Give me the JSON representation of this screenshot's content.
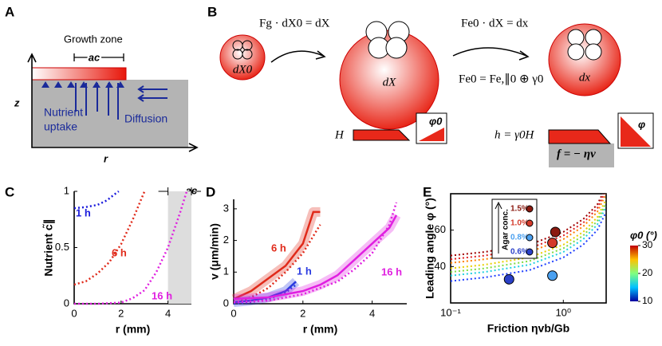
{
  "panel_labels": [
    "A",
    "B",
    "C",
    "D",
    "E"
  ],
  "diagram_a": {
    "growth_zone": "Growth zone",
    "ac": "ac",
    "z": "z",
    "r": "r",
    "uptake": [
      "Nutrient",
      "uptake"
    ],
    "diffusion": "Diffusion"
  },
  "diagram_b": {
    "eq1": "Fg · dX0 = dX",
    "eq2": "Fe0 · dX = dx",
    "eq3": "Fe0 = Fe,∥0 ⊕ γ0",
    "small": "dX0",
    "mid": "dX",
    "big": "dx",
    "H": "H",
    "phi0": "φ0",
    "h": "h = γ0H",
    "phi": "φ",
    "f": "f = − ηv"
  },
  "chart_data": [
    {
      "type": "line",
      "xlabel": "r (mm)",
      "ylabel": "Nutrient c̃∥",
      "xlim": [
        0,
        5
      ],
      "xticks": [
        0,
        2,
        4
      ],
      "ylim": [
        0,
        1
      ],
      "yticks": [
        0,
        0.5,
        1
      ],
      "band": [
        4,
        5
      ],
      "band_label": "ac",
      "series": [
        {
          "name": "1 h",
          "color": "#1a1adc",
          "x": [
            0,
            0.5,
            1,
            1.4,
            1.7,
            1.9
          ],
          "values": [
            0.85,
            0.86,
            0.88,
            0.92,
            0.97,
            1.0
          ]
        },
        {
          "name": "6 h",
          "color": "#e02a1a",
          "x": [
            0,
            0.5,
            1,
            1.5,
            2,
            2.5,
            3
          ],
          "values": [
            0.17,
            0.2,
            0.27,
            0.37,
            0.53,
            0.75,
            1.0
          ]
        },
        {
          "name": "16 h",
          "color": "#e020e0",
          "x": [
            0,
            1,
            2,
            2.5,
            3,
            3.5,
            4,
            4.5,
            4.8
          ],
          "values": [
            0,
            0,
            0.01,
            0.05,
            0.12,
            0.28,
            0.5,
            0.8,
            1.0
          ]
        }
      ]
    },
    {
      "type": "line",
      "xlabel": "r (mm)",
      "ylabel": "v (μm/min)",
      "xlim": [
        0,
        5
      ],
      "xticks": [
        0,
        2,
        4
      ],
      "ylim": [
        0,
        3.3
      ],
      "yticks": [
        0,
        1,
        2,
        3
      ],
      "series": [
        {
          "name": "6 h",
          "color": "#e02a1a",
          "x": [
            0,
            0.5,
            1,
            1.5,
            2,
            2.3,
            2.5
          ],
          "values": [
            0.15,
            0.4,
            0.8,
            1.2,
            1.9,
            2.9,
            2.9
          ],
          "model_x": [
            0,
            0.5,
            1,
            1.5,
            2,
            2.5
          ],
          "model_values": [
            0,
            0.2,
            0.5,
            1.0,
            1.6,
            2.5
          ]
        },
        {
          "name": "1 h",
          "color": "#2a3ae0",
          "x": [
            0,
            0.5,
            1,
            1.5,
            1.8
          ],
          "values": [
            0.05,
            0.1,
            0.2,
            0.4,
            0.7
          ],
          "model_x": [
            0,
            0.5,
            1,
            1.5,
            1.8
          ],
          "model_values": [
            0,
            0.05,
            0.15,
            0.35,
            0.6
          ]
        },
        {
          "name": "16 h",
          "color": "#e020e0",
          "x": [
            0,
            1,
            2,
            2.5,
            3,
            3.5,
            4,
            4.5,
            4.7
          ],
          "values": [
            0.15,
            0.2,
            0.4,
            0.6,
            0.9,
            1.4,
            1.9,
            2.4,
            2.8
          ],
          "model_x": [
            0,
            1,
            2,
            3,
            3.5,
            4,
            4.5,
            4.7
          ],
          "model_values": [
            0.05,
            0.1,
            0.3,
            0.7,
            1.1,
            1.6,
            2.5,
            3.2
          ]
        }
      ]
    },
    {
      "type": "scatter",
      "xlabel": "Friction ηvb/Gb",
      "ylabel": "Leading angle φ (°)",
      "xlog": true,
      "xlim": [
        0.1,
        2.4
      ],
      "xticks": [
        {
          "value": 0.1,
          "label": "10⁻¹"
        },
        {
          "value": 1,
          "label": "10⁰"
        }
      ],
      "ylim": [
        20,
        80
      ],
      "yticks": [
        40,
        60
      ],
      "legend_title": "Agar conc.",
      "series": [
        {
          "name": "1.5%",
          "color": "#8b1a10",
          "x": [
            0.85
          ],
          "values": [
            59
          ]
        },
        {
          "name": "1.0%",
          "color": "#d43a2a",
          "x": [
            0.8
          ],
          "values": [
            53
          ]
        },
        {
          "name": "0.8%",
          "color": "#4aa0f0",
          "x": [
            0.8
          ],
          "values": [
            35
          ]
        },
        {
          "name": "0.6%",
          "color": "#2a40c8",
          "x": [
            0.33
          ],
          "values": [
            33
          ]
        }
      ],
      "model_curves": {
        "x": [
          0.1,
          0.2,
          0.5,
          1,
          1.5,
          2,
          2.4
        ],
        "curves": [
          {
            "color": "#a00000",
            "values": [
              46,
              48,
              52,
              59,
              66,
              74,
              84
            ]
          },
          {
            "color": "#e02020",
            "values": [
              44,
              46,
              50,
              57,
              64,
              72,
              82
            ]
          },
          {
            "color": "#ff7f00",
            "values": [
              42,
              44,
              48,
              55,
              62,
              70,
              80
            ]
          },
          {
            "color": "#e8d000",
            "values": [
              39,
              41,
              45,
              52,
              59,
              67,
              77
            ]
          },
          {
            "color": "#7fdc40",
            "values": [
              37,
              39,
              43,
              50,
              57,
              65,
              75
            ]
          },
          {
            "color": "#20d0e0",
            "values": [
              35,
              37,
              41,
              48,
              55,
              63,
              73
            ]
          },
          {
            "color": "#2040ff",
            "values": [
              32,
              34,
              38,
              45,
              52,
              60,
              70
            ]
          }
        ]
      },
      "colorbar": {
        "label": "φ0 (°)",
        "lim": [
          10,
          30
        ],
        "ticks": [
          10,
          20,
          30
        ]
      }
    }
  ]
}
